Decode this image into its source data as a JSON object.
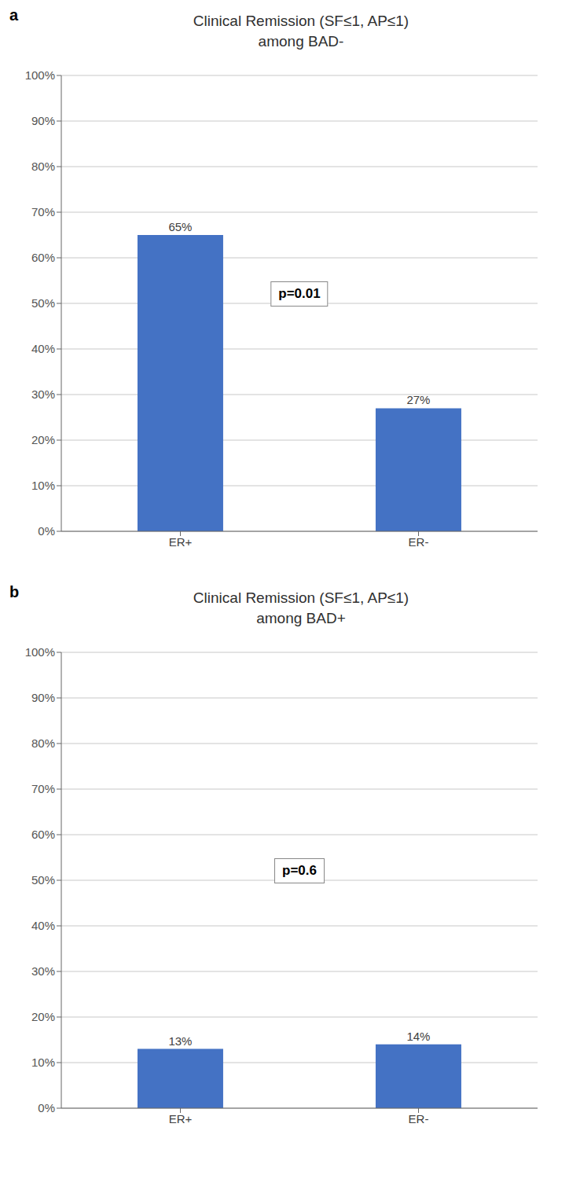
{
  "chart_data": [
    {
      "type": "bar",
      "panel_label": "a",
      "title": "Clinical Remission (SF≤1, AP≤1)",
      "subtitle": "among BAD-",
      "categories": [
        "ER+",
        "ER-"
      ],
      "values": [
        0.65,
        0.27
      ],
      "value_labels": [
        "65%",
        "27%"
      ],
      "data_labels": true,
      "color": "#4472C4",
      "annotations": [
        "p=0.01"
      ],
      "grid": true,
      "ylim": [
        0,
        1.0
      ],
      "yticks": [
        {
          "value": 0.0,
          "label": "0%"
        },
        {
          "value": 0.1,
          "label": "10%"
        },
        {
          "value": 0.2,
          "label": "20%"
        },
        {
          "value": 0.3,
          "label": "30%"
        },
        {
          "value": 0.4,
          "label": "40%"
        },
        {
          "value": 0.5,
          "label": "50%"
        },
        {
          "value": 0.6,
          "label": "60%"
        },
        {
          "value": 0.7,
          "label": "70%"
        },
        {
          "value": 0.8,
          "label": "80%"
        },
        {
          "value": 0.9,
          "label": "90%"
        },
        {
          "value": 1.0,
          "label": "100%"
        }
      ]
    },
    {
      "type": "bar",
      "panel_label": "b",
      "title": "Clinical Remission (SF≤1, AP≤1)",
      "subtitle": "among BAD+",
      "categories": [
        "ER+",
        "ER-"
      ],
      "values": [
        0.13,
        0.14
      ],
      "value_labels": [
        "13%",
        "14%"
      ],
      "data_labels": true,
      "color": "#4472C4",
      "annotations": [
        "p=0.6"
      ],
      "grid": true,
      "ylim": [
        0,
        1.0
      ],
      "yticks": [
        {
          "value": 0.0,
          "label": "0%"
        },
        {
          "value": 0.1,
          "label": "10%"
        },
        {
          "value": 0.2,
          "label": "20%"
        },
        {
          "value": 0.3,
          "label": "30%"
        },
        {
          "value": 0.4,
          "label": "40%"
        },
        {
          "value": 0.5,
          "label": "50%"
        },
        {
          "value": 0.6,
          "label": "60%"
        },
        {
          "value": 0.7,
          "label": "70%"
        },
        {
          "value": 0.8,
          "label": "80%"
        },
        {
          "value": 0.9,
          "label": "90%"
        },
        {
          "value": 1.0,
          "label": "100%"
        }
      ]
    }
  ]
}
